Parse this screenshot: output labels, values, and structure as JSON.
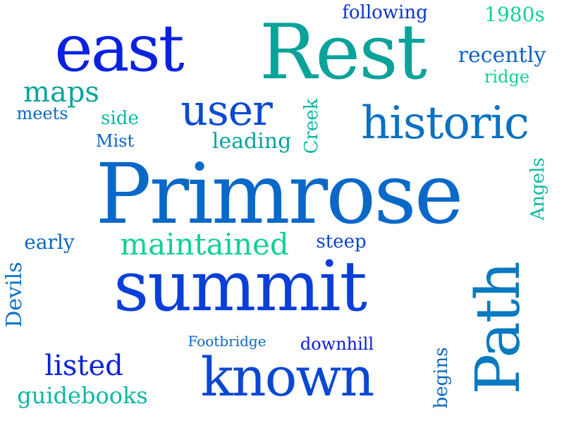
{
  "words": [
    {
      "text": "Primrose",
      "color": "#0a68c8"
    },
    {
      "text": "summit",
      "color": "#0a3fd8"
    },
    {
      "text": "Rest",
      "color": "#0aa39a"
    },
    {
      "text": "east",
      "color": "#0a22e0"
    },
    {
      "text": "Path",
      "color": "#0a7ac0"
    },
    {
      "text": "known",
      "color": "#0a48d2"
    },
    {
      "text": "historic",
      "color": "#0a72c4"
    },
    {
      "text": "user",
      "color": "#0a4ad2"
    },
    {
      "text": "maintained",
      "color": "#12d094"
    },
    {
      "text": "maps",
      "color": "#0aa49c"
    },
    {
      "text": "listed",
      "color": "#0a22d8"
    },
    {
      "text": "guidebooks",
      "color": "#0ab8a2"
    },
    {
      "text": "leading",
      "color": "#0aa39a"
    },
    {
      "text": "recently",
      "color": "#0a62c6"
    },
    {
      "text": "1980s",
      "color": "#12d094"
    },
    {
      "text": "following",
      "color": "#0a34d2"
    },
    {
      "text": "early",
      "color": "#0a68c2"
    },
    {
      "text": "steep",
      "color": "#0a42d0"
    },
    {
      "text": "downhill",
      "color": "#0a1ed8"
    },
    {
      "text": "Footbridge",
      "color": "#0a68c2"
    },
    {
      "text": "side",
      "color": "#0ab8a0"
    },
    {
      "text": "Mist",
      "color": "#0a62c6"
    },
    {
      "text": "meets",
      "color": "#0a68c2"
    },
    {
      "text": "ridge",
      "color": "#12d094"
    },
    {
      "text": "Creek",
      "color": "#0ab8a0"
    },
    {
      "text": "Angels",
      "color": "#0ab8a0"
    },
    {
      "text": "Devils",
      "color": "#0a72c4"
    },
    {
      "text": "begins",
      "color": "#0a68c2"
    }
  ]
}
